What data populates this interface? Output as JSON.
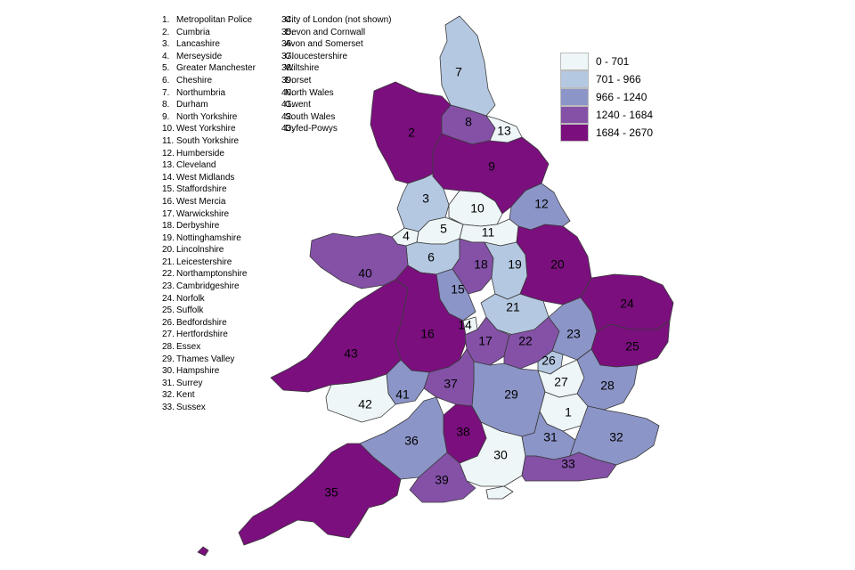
{
  "forces_col1": [
    {
      "num": "1.",
      "name": "Metropolitan Police"
    },
    {
      "num": "2.",
      "name": "Cumbria"
    },
    {
      "num": "3.",
      "name": "Lancashire"
    },
    {
      "num": "4.",
      "name": "Merseyside"
    },
    {
      "num": "5.",
      "name": "Greater Manchester"
    },
    {
      "num": "6.",
      "name": "Cheshire"
    },
    {
      "num": "7.",
      "name": "Northumbria"
    },
    {
      "num": "8.",
      "name": "Durham"
    },
    {
      "num": "9.",
      "name": "North Yorkshire"
    },
    {
      "num": "10.",
      "name": "West Yorkshire"
    },
    {
      "num": "11.",
      "name": "South Yorkshire"
    },
    {
      "num": "12.",
      "name": "Humberside"
    },
    {
      "num": "13.",
      "name": "Cleveland"
    },
    {
      "num": "14.",
      "name": "West Midlands"
    },
    {
      "num": "15.",
      "name": "Staffordshire"
    },
    {
      "num": "16.",
      "name": "West Mercia"
    },
    {
      "num": "17.",
      "name": "Warwickshire"
    },
    {
      "num": "18.",
      "name": "Derbyshire"
    },
    {
      "num": "19.",
      "name": "Nottinghamshire"
    },
    {
      "num": "20.",
      "name": "Lincolnshire"
    },
    {
      "num": "21.",
      "name": "Leicestershire"
    },
    {
      "num": "22.",
      "name": "Northamptonshire"
    },
    {
      "num": "23.",
      "name": "Cambridgeshire"
    },
    {
      "num": "24.",
      "name": "Norfolk"
    },
    {
      "num": "25.",
      "name": "Suffolk"
    },
    {
      "num": "26.",
      "name": "Bedfordshire"
    },
    {
      "num": "27.",
      "name": "Hertfordshire"
    },
    {
      "num": "28.",
      "name": "Essex"
    },
    {
      "num": "29.",
      "name": "Thames Valley"
    },
    {
      "num": "30.",
      "name": "Hampshire"
    },
    {
      "num": "31.",
      "name": "Surrey"
    },
    {
      "num": "32.",
      "name": "Kent"
    },
    {
      "num": "33.",
      "name": "Sussex"
    }
  ],
  "forces_col2": [
    {
      "num": "34.",
      "name": "City of London  (not shown)"
    },
    {
      "num": "35.",
      "name": "Devon and Cornwall"
    },
    {
      "num": "36.",
      "name": "Avon and Somerset"
    },
    {
      "num": "37.",
      "name": "Gloucestershire"
    },
    {
      "num": "38.",
      "name": "Wiltshire"
    },
    {
      "num": "39.",
      "name": "Dorset"
    },
    {
      "num": "40.",
      "name": "North Wales"
    },
    {
      "num": "41.",
      "name": "Gwent"
    },
    {
      "num": "42.",
      "name": "South Wales"
    },
    {
      "num": "43.",
      "name": "Dyfed-Powys"
    }
  ],
  "key": [
    {
      "range": "0 - 701",
      "color": "#eef6f8"
    },
    {
      "range": "701 - 966",
      "color": "#b5c8e2"
    },
    {
      "range": "966 - 1240",
      "color": "#8c95c8"
    },
    {
      "range": "1240 - 1684",
      "color": "#8451a7"
    },
    {
      "range": "1684 - 2670",
      "color": "#7b0f7e"
    }
  ],
  "regions": [
    {
      "label": "1",
      "band": 0
    },
    {
      "label": "2",
      "band": 4
    },
    {
      "label": "3",
      "band": 1
    },
    {
      "label": "4",
      "band": 0
    },
    {
      "label": "5",
      "band": 0
    },
    {
      "label": "6",
      "band": 1
    },
    {
      "label": "7",
      "band": 1
    },
    {
      "label": "8",
      "band": 3
    },
    {
      "label": "9",
      "band": 4
    },
    {
      "label": "10",
      "band": 0
    },
    {
      "label": "11",
      "band": 0
    },
    {
      "label": "12",
      "band": 2
    },
    {
      "label": "13",
      "band": 0
    },
    {
      "label": "14",
      "band": 0
    },
    {
      "label": "15",
      "band": 2
    },
    {
      "label": "16",
      "band": 4
    },
    {
      "label": "17",
      "band": 3
    },
    {
      "label": "18",
      "band": 3
    },
    {
      "label": "19",
      "band": 1
    },
    {
      "label": "20",
      "band": 4
    },
    {
      "label": "21",
      "band": 1
    },
    {
      "label": "22",
      "band": 3
    },
    {
      "label": "23",
      "band": 2
    },
    {
      "label": "24",
      "band": 4
    },
    {
      "label": "25",
      "band": 4
    },
    {
      "label": "26",
      "band": 1
    },
    {
      "label": "27",
      "band": 0
    },
    {
      "label": "28",
      "band": 2
    },
    {
      "label": "29",
      "band": 2
    },
    {
      "label": "30",
      "band": 0
    },
    {
      "label": "31",
      "band": 2
    },
    {
      "label": "32",
      "band": 2
    },
    {
      "label": "33",
      "band": 3
    },
    {
      "label": "35",
      "band": 4
    },
    {
      "label": "36",
      "band": 2
    },
    {
      "label": "37",
      "band": 3
    },
    {
      "label": "38",
      "band": 4
    },
    {
      "label": "39",
      "band": 3
    },
    {
      "label": "40",
      "band": 3
    },
    {
      "label": "41",
      "band": 2
    },
    {
      "label": "42",
      "band": 0
    },
    {
      "label": "43",
      "band": 4
    }
  ]
}
